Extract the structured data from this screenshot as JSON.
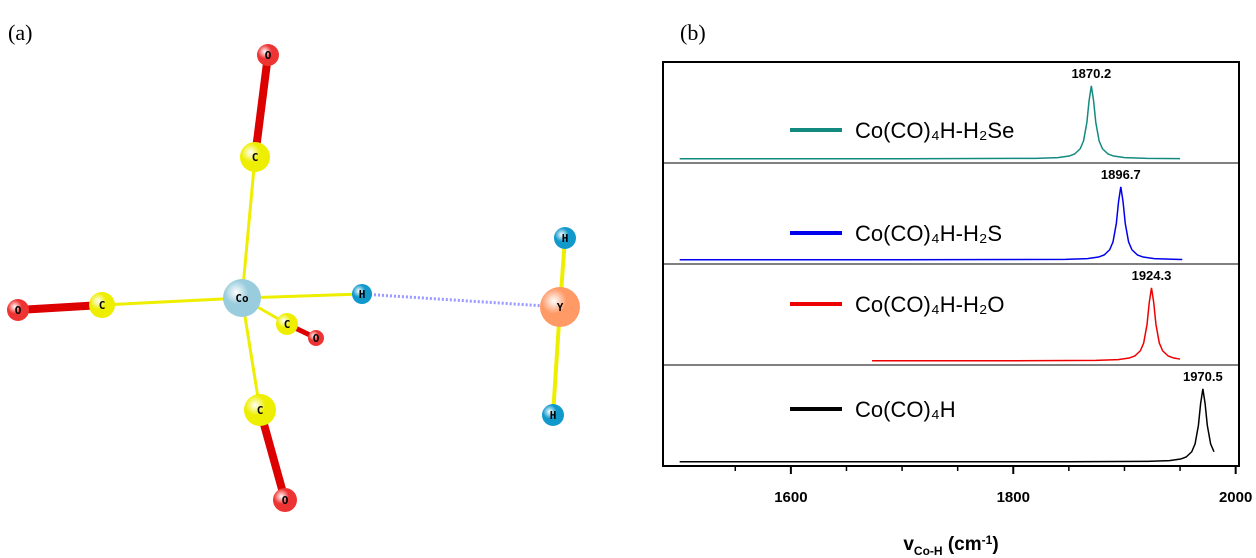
{
  "panel_labels": [
    "(a)",
    "(b)"
  ],
  "molecule": {
    "atoms": [
      "O",
      "C",
      "Co",
      "C",
      "O",
      "H",
      "C",
      "O",
      "C",
      "O",
      "Y",
      "H",
      "H"
    ]
  },
  "chart_data": {
    "type": "line",
    "xlabel": [
      "v",
      "Co-H",
      " (cm",
      "-1",
      ")"
    ],
    "xlim": [
      1485,
      2003
    ],
    "xticks": [
      1600,
      1800,
      2000
    ],
    "xminorticks": [
      1550,
      1650,
      1700,
      1750,
      1850,
      1900,
      1950
    ],
    "ylim": [
      -0.03,
      1.3
    ],
    "series": [
      {
        "name": "Co(CO)₄H-H₂Se",
        "color": "#138a80",
        "peak": 1870.2,
        "x": [
          1500,
          1700,
          1820.2,
          1840.2,
          1850.2,
          1855.2,
          1860.2,
          1863.2,
          1866.2,
          1868.2,
          1870.2,
          1872.2,
          1874.2,
          1877.2,
          1880.2,
          1885.2,
          1890.2,
          1900.2,
          1920.2,
          1950
        ],
        "values": [
          0,
          0.0006,
          0.006,
          0.017,
          0.038,
          0.066,
          0.138,
          0.246,
          0.5,
          0.8,
          1,
          0.8,
          0.5,
          0.246,
          0.138,
          0.066,
          0.038,
          0.017,
          0.006,
          0.002
        ]
      },
      {
        "name": "Co(CO)₄H-H₂S",
        "color": "#0000ee",
        "peak": 1896.7,
        "x": [
          1500,
          1700,
          1846.7,
          1866.7,
          1876.7,
          1881.7,
          1886.7,
          1889.7,
          1892.7,
          1894.7,
          1896.7,
          1898.7,
          1900.7,
          1903.7,
          1906.7,
          1911.7,
          1916.7,
          1926.7,
          1946.7,
          1952
        ],
        "values": [
          0,
          0.0004,
          0.006,
          0.017,
          0.038,
          0.066,
          0.138,
          0.246,
          0.5,
          0.8,
          1,
          0.8,
          0.5,
          0.246,
          0.138,
          0.066,
          0.038,
          0.017,
          0.006,
          0.004
        ]
      },
      {
        "name": "Co(CO)₄H-H₂O",
        "color": "#ee0000",
        "peak": 1924.3,
        "x": [
          1673,
          1800,
          1874.3,
          1894.3,
          1904.3,
          1909.3,
          1914.3,
          1917.3,
          1920.3,
          1922.3,
          1924.3,
          1926.3,
          1928.3,
          1931.3,
          1934.3,
          1939.3,
          1944.3,
          1950
        ],
        "values": [
          0.0005,
          0.001,
          0.006,
          0.017,
          0.038,
          0.066,
          0.138,
          0.246,
          0.5,
          0.8,
          1,
          0.8,
          0.5,
          0.246,
          0.138,
          0.066,
          0.038,
          0.024
        ]
      },
      {
        "name": "Co(CO)₄H",
        "color": "#000000",
        "peak": 1970.5,
        "x": [
          1500,
          1700,
          1850,
          1920.5,
          1940.5,
          1950.5,
          1955.5,
          1960.5,
          1963.5,
          1966.5,
          1968.5,
          1970.5,
          1972.5,
          1974.5,
          1977.5,
          1980.5
        ],
        "values": [
          0,
          0.0002,
          0.001,
          0.006,
          0.017,
          0.038,
          0.066,
          0.138,
          0.246,
          0.5,
          0.8,
          1,
          0.8,
          0.5,
          0.246,
          0.138
        ]
      }
    ]
  }
}
